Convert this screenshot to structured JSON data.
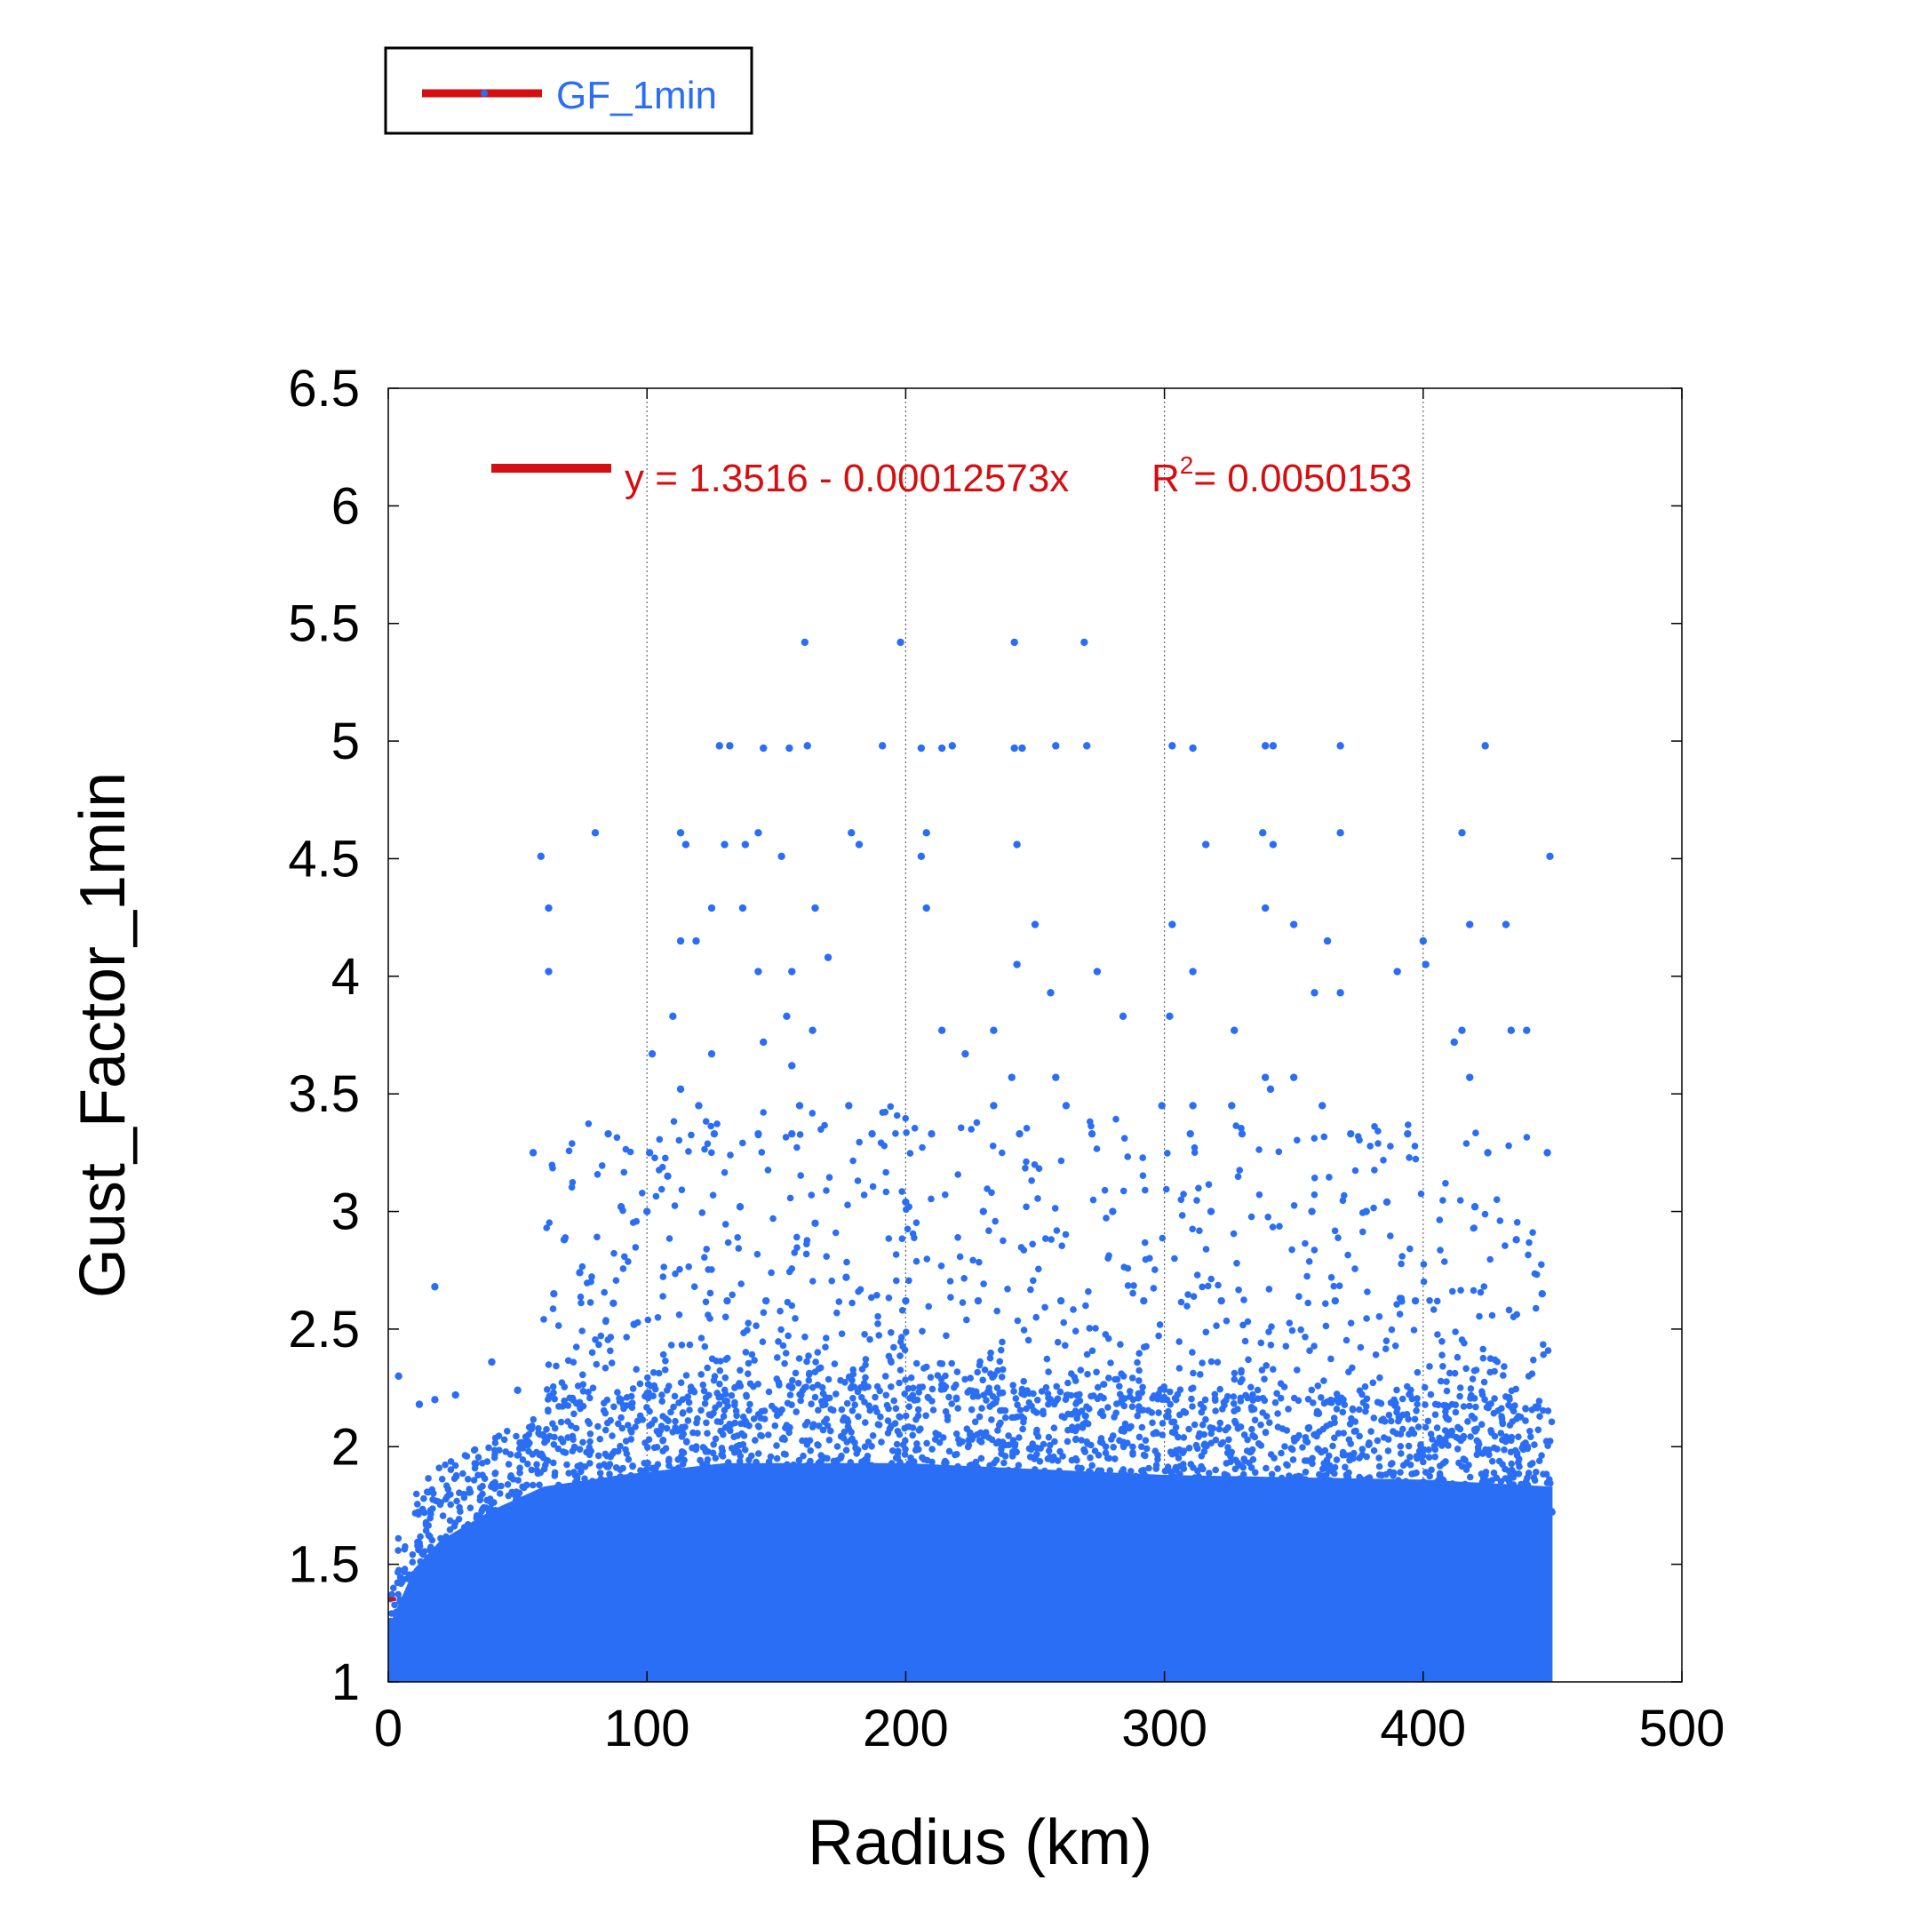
{
  "chart_data": {
    "type": "scatter",
    "xlabel": "Radius (km)",
    "ylabel": "Gust_Factor_1min",
    "xlim": [
      0,
      500
    ],
    "ylim": [
      1,
      6.5
    ],
    "x_ticks": [
      "0",
      "100",
      "200",
      "300",
      "400",
      "500"
    ],
    "y_ticks": [
      "1",
      "1.5",
      "2",
      "2.5",
      "3",
      "3.5",
      "4",
      "4.5",
      "5",
      "5.5",
      "6",
      "6.5"
    ],
    "x_grid": [
      100,
      200,
      300,
      400
    ],
    "legend": {
      "label": "GF_1min",
      "placement": "top-left, outside plot"
    },
    "colors": {
      "points": "#2a6ef5",
      "fit": "#d40f12",
      "legend_text": "#2a6ef5"
    },
    "series": [
      {
        "name": "GF_1min",
        "x_range": [
          0,
          450
        ],
        "dense_band": [
          {
            "x": 0,
            "ymin": 1.0,
            "ymax": 1.35
          },
          {
            "x": 10,
            "ymin": 1.0,
            "ymax": 1.6
          },
          {
            "x": 20,
            "ymin": 1.0,
            "ymax": 1.72
          },
          {
            "x": 40,
            "ymin": 1.0,
            "ymax": 1.85
          },
          {
            "x": 60,
            "ymin": 1.0,
            "ymax": 1.95
          },
          {
            "x": 90,
            "ymin": 1.0,
            "ymax": 2.0
          },
          {
            "x": 130,
            "ymin": 1.0,
            "ymax": 2.05
          },
          {
            "x": 200,
            "ymin": 1.0,
            "ymax": 2.05
          },
          {
            "x": 300,
            "ymin": 1.0,
            "ymax": 2.0
          },
          {
            "x": 400,
            "ymin": 1.0,
            "ymax": 1.98
          },
          {
            "x": 450,
            "ymin": 1.0,
            "ymax": 1.95
          }
        ],
        "outliers": [
          [
            161,
            5.42
          ],
          [
            198,
            5.42
          ],
          [
            242,
            5.42
          ],
          [
            269,
            5.42
          ],
          [
            128,
            4.98
          ],
          [
            132,
            4.98
          ],
          [
            145,
            4.97
          ],
          [
            155,
            4.97
          ],
          [
            162,
            4.98
          ],
          [
            191,
            4.98
          ],
          [
            206,
            4.97
          ],
          [
            214,
            4.97
          ],
          [
            218,
            4.98
          ],
          [
            242,
            4.97
          ],
          [
            245,
            4.97
          ],
          [
            258,
            4.98
          ],
          [
            270,
            4.98
          ],
          [
            303,
            4.98
          ],
          [
            311,
            4.97
          ],
          [
            339,
            4.98
          ],
          [
            342,
            4.98
          ],
          [
            368,
            4.98
          ],
          [
            424,
            4.98
          ],
          [
            80,
            4.61
          ],
          [
            113,
            4.61
          ],
          [
            143,
            4.61
          ],
          [
            179,
            4.61
          ],
          [
            208,
            4.61
          ],
          [
            338,
            4.61
          ],
          [
            368,
            4.61
          ],
          [
            415,
            4.61
          ],
          [
            59,
            4.51
          ],
          [
            115,
            4.56
          ],
          [
            130,
            4.56
          ],
          [
            138,
            4.56
          ],
          [
            152,
            4.51
          ],
          [
            182,
            4.56
          ],
          [
            206,
            4.51
          ],
          [
            243,
            4.56
          ],
          [
            316,
            4.56
          ],
          [
            342,
            4.56
          ],
          [
            449,
            4.51
          ],
          [
            62,
            4.29
          ],
          [
            125,
            4.29
          ],
          [
            137,
            4.29
          ],
          [
            165,
            4.29
          ],
          [
            208,
            4.29
          ],
          [
            250,
            4.22
          ],
          [
            303,
            4.22
          ],
          [
            339,
            4.29
          ],
          [
            350,
            4.22
          ],
          [
            418,
            4.22
          ],
          [
            432,
            4.22
          ],
          [
            62,
            4.02
          ],
          [
            113,
            4.15
          ],
          [
            119,
            4.15
          ],
          [
            143,
            4.02
          ],
          [
            156,
            4.02
          ],
          [
            170,
            4.08
          ],
          [
            243,
            4.05
          ],
          [
            274,
            4.02
          ],
          [
            311,
            4.02
          ],
          [
            363,
            4.15
          ],
          [
            390,
            4.02
          ],
          [
            400,
            4.15
          ],
          [
            401,
            4.05
          ],
          [
            110,
            3.83
          ],
          [
            154,
            3.83
          ],
          [
            164,
            3.77
          ],
          [
            214,
            3.77
          ],
          [
            234,
            3.77
          ],
          [
            256,
            3.93
          ],
          [
            284,
            3.83
          ],
          [
            302,
            3.83
          ],
          [
            327,
            3.77
          ],
          [
            358,
            3.93
          ],
          [
            368,
            3.93
          ],
          [
            415,
            3.77
          ],
          [
            434,
            3.77
          ],
          [
            440,
            3.77
          ],
          [
            102,
            3.67
          ],
          [
            125,
            3.67
          ],
          [
            145,
            3.72
          ],
          [
            156,
            3.62
          ],
          [
            223,
            3.67
          ],
          [
            241,
            3.57
          ],
          [
            258,
            3.57
          ],
          [
            339,
            3.57
          ],
          [
            350,
            3.57
          ],
          [
            412,
            3.72
          ],
          [
            418,
            3.57
          ],
          [
            56,
            3.25
          ],
          [
            113,
            3.52
          ],
          [
            120,
            3.45
          ],
          [
            159,
            3.45
          ],
          [
            178,
            3.45
          ],
          [
            234,
            3.45
          ],
          [
            262,
            3.45
          ],
          [
            299,
            3.45
          ],
          [
            311,
            3.45
          ],
          [
            326,
            3.45
          ],
          [
            341,
            3.52
          ],
          [
            361,
            3.45
          ],
          [
            85,
            3.33
          ],
          [
            101,
            3.25
          ],
          [
            108,
            3.15
          ],
          [
            126,
            3.33
          ],
          [
            143,
            3.33
          ],
          [
            156,
            3.33
          ],
          [
            187,
            3.33
          ],
          [
            210,
            3.33
          ],
          [
            244,
            3.33
          ],
          [
            272,
            3.33
          ],
          [
            310,
            3.33
          ],
          [
            330,
            3.33
          ],
          [
            372,
            3.33
          ],
          [
            394,
            3.33
          ],
          [
            425,
            3.25
          ],
          [
            448,
            3.25
          ],
          [
            68,
            2.88
          ],
          [
            74,
            2.74
          ],
          [
            90,
            3.02
          ],
          [
            100,
            3.0
          ],
          [
            136,
            3.02
          ],
          [
            165,
            2.95
          ],
          [
            200,
            3.04
          ],
          [
            230,
            3.0
          ],
          [
            280,
            3.0
          ],
          [
            318,
            3.0
          ],
          [
            357,
            3.0
          ],
          [
            378,
            3.0
          ],
          [
            386,
            3.04
          ],
          [
            420,
            3.02
          ],
          [
            436,
            2.88
          ],
          [
            18,
            2.68
          ],
          [
            64,
            2.65
          ],
          [
            87,
            2.61
          ],
          [
            95,
            2.52
          ],
          [
            131,
            2.62
          ],
          [
            146,
            2.62
          ],
          [
            177,
            2.72
          ],
          [
            200,
            2.62
          ],
          [
            228,
            2.62
          ],
          [
            260,
            2.62
          ],
          [
            292,
            2.62
          ],
          [
            322,
            2.62
          ],
          [
            366,
            2.62
          ],
          [
            397,
            2.62
          ],
          [
            446,
            2.65
          ],
          [
            4,
            2.3
          ],
          [
            12,
            2.18
          ],
          [
            18,
            2.2
          ],
          [
            26,
            2.22
          ],
          [
            40,
            2.36
          ],
          [
            50,
            2.24
          ]
        ]
      }
    ],
    "fit": {
      "label": "y = 1.3516 - 0.00012573x",
      "r2_label": "R",
      "r2_sup": "2",
      "r2_value": "= 0.0050153",
      "intercept": 1.3516,
      "slope": -0.00012573
    }
  }
}
